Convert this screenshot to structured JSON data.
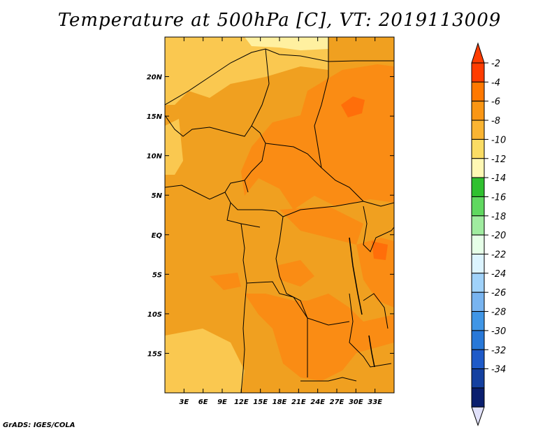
{
  "title": "Temperature at 500hPa [C], VT: 2019113009",
  "credit": "GrADS: IGES/COLA",
  "map": {
    "lon_range": [
      0,
      36
    ],
    "lat_range": [
      -20,
      25
    ],
    "lat_ticks": [
      {
        "value": 20,
        "label": "20N"
      },
      {
        "value": 15,
        "label": "15N"
      },
      {
        "value": 10,
        "label": "10N"
      },
      {
        "value": 5,
        "label": "5N"
      },
      {
        "value": 0,
        "label": "EQ"
      },
      {
        "value": -5,
        "label": "5S"
      },
      {
        "value": -10,
        "label": "10S"
      },
      {
        "value": -15,
        "label": "15S"
      }
    ],
    "lon_ticks": [
      {
        "value": 3,
        "label": "3E"
      },
      {
        "value": 6,
        "label": "6E"
      },
      {
        "value": 9,
        "label": "9E"
      },
      {
        "value": 12,
        "label": "12E"
      },
      {
        "value": 15,
        "label": "15E"
      },
      {
        "value": 18,
        "label": "18E"
      },
      {
        "value": 21,
        "label": "21E"
      },
      {
        "value": 24,
        "label": "24E"
      },
      {
        "value": 27,
        "label": "27E"
      },
      {
        "value": 30,
        "label": "30E"
      },
      {
        "value": 33,
        "label": "33E"
      }
    ],
    "colors": {
      "base": "#f0a020",
      "warm": "#fa8c14",
      "warmer": "#ff6e0a",
      "cooler": "#fac850",
      "coolest": "#fff0a0"
    }
  },
  "colorbar": {
    "levels": [
      {
        "label": "-2",
        "color": "#ff3c00"
      },
      {
        "label": "-4",
        "color": "#ff7800"
      },
      {
        "label": "-6",
        "color": "#fa9614"
      },
      {
        "label": "-8",
        "color": "#fab432"
      },
      {
        "label": "-10",
        "color": "#fadc64"
      },
      {
        "label": "-12",
        "color": "#fff8b4"
      },
      {
        "label": "-14",
        "color": "#30c030"
      },
      {
        "label": "-16",
        "color": "#60d860"
      },
      {
        "label": "-18",
        "color": "#a0eca0"
      },
      {
        "label": "-20",
        "color": "#e6ffe8"
      },
      {
        "label": "-22",
        "color": "#dcf4ff"
      },
      {
        "label": "-24",
        "color": "#a0d2fa"
      },
      {
        "label": "-26",
        "color": "#78b4f0"
      },
      {
        "label": "-28",
        "color": "#4096e6"
      },
      {
        "label": "-30",
        "color": "#2878d8"
      },
      {
        "label": "-32",
        "color": "#1e5ac8"
      },
      {
        "label": "-34",
        "color": "#1440a0"
      },
      {
        "label": "",
        "color": "#0a1e6e"
      }
    ],
    "low_end_color": "#e1e1fa"
  }
}
